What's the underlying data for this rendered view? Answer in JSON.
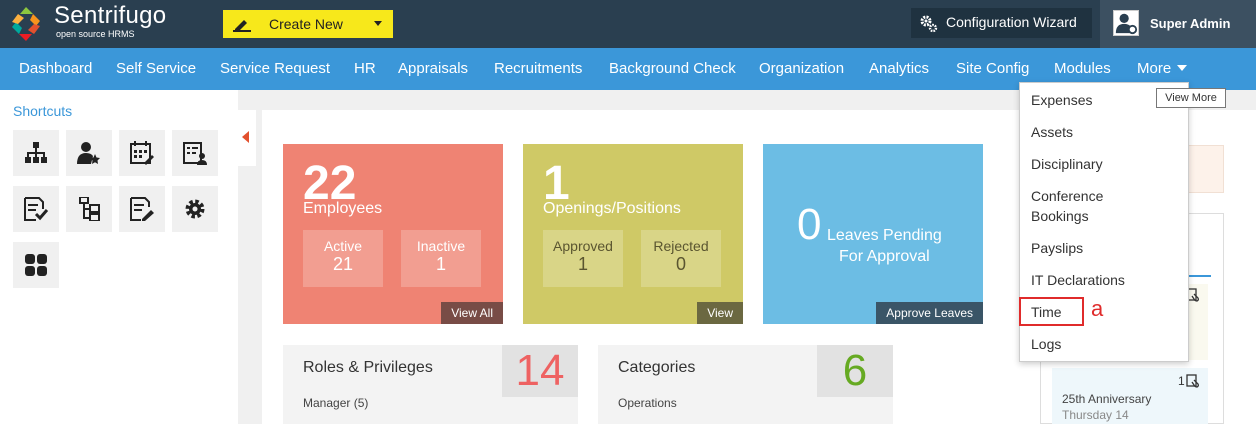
{
  "header": {
    "brand_name": "Sentrifugo",
    "brand_tagline": "open source HRMS",
    "create_new_label": "Create New",
    "config_wizard_label": "Configuration Wizard",
    "user_name": "Super Admin"
  },
  "nav": {
    "items": [
      "Dashboard",
      "Self Service",
      "Service Request",
      "HR",
      "Appraisals",
      "Recruitments",
      "Background Check",
      "Organization",
      "Analytics",
      "Site Config",
      "Modules",
      "More"
    ]
  },
  "tooltip": "View More",
  "more_menu": {
    "items": [
      "Expenses",
      "Assets",
      "Disciplinary",
      "Conference",
      "Bookings",
      "Payslips",
      "IT Declarations",
      "Time",
      "Logs"
    ]
  },
  "annotation": "a",
  "shortcuts": {
    "title": "Shortcuts",
    "icons": [
      "org-chart-icon",
      "user-star-icon",
      "calendar-edit-icon",
      "id-card-user-icon",
      "checklist-icon",
      "tree-structure-icon",
      "document-edit-icon",
      "gear-icon",
      "grid-icon"
    ]
  },
  "cards": {
    "employees": {
      "count": "22",
      "label": "Employees",
      "active_label": "Active",
      "active_value": "21",
      "inactive_label": "Inactive",
      "inactive_value": "1",
      "button": "View All"
    },
    "openings": {
      "count": "1",
      "label": "Openings/Positions",
      "approved_label": "Approved",
      "approved_value": "1",
      "rejected_label": "Rejected",
      "rejected_value": "0",
      "button": "View"
    },
    "leaves": {
      "count": "0",
      "line1": "Leaves Pending",
      "line2": "For Approval",
      "button": "Approve Leaves"
    }
  },
  "stats": {
    "roles": {
      "title": "Roles & Privileges",
      "value": "14",
      "sub": "Manager (5)"
    },
    "categories": {
      "title": "Categories",
      "value": "6",
      "sub": "Operations"
    }
  },
  "right_panel": {
    "count": "1",
    "anniversary": "25th Anniversary",
    "anniversary_sub": "Thursday 14"
  },
  "colors": {
    "topbar": "#2a3f50",
    "navbar": "#3b97d9",
    "create_new": "#f7e81b",
    "employees_card": "#ef8373",
    "openings_card": "#cfc966",
    "leaves_card": "#6cbde4",
    "annotation_red": "#e02b2b"
  }
}
